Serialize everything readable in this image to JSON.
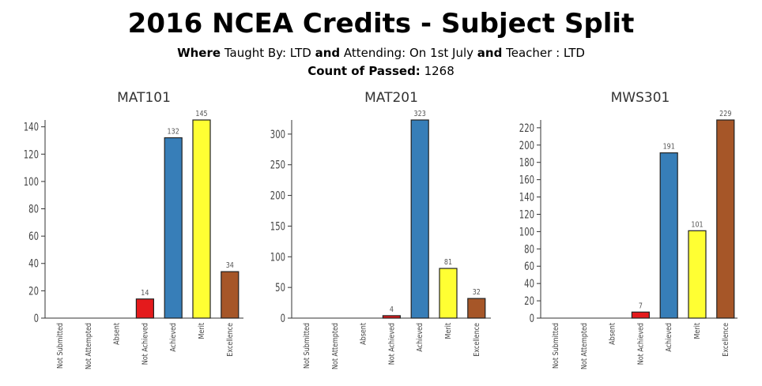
{
  "header": {
    "title": "2016 NCEA Credits - Subject Split",
    "filter": {
      "where_label": "Where",
      "taught_by": "Taught By: LTD",
      "and1": "and",
      "attending": "Attending: On 1st July",
      "and2": "and",
      "teacher": "Teacher : LTD"
    },
    "count_label": "Count of Passed:",
    "count_value": "1268"
  },
  "chart_data": [
    {
      "type": "bar",
      "title": "MAT101",
      "categories": [
        "Not Submitted",
        "Not Attempted",
        "Absent",
        "Not Achieved",
        "Achieved",
        "Merit",
        "Excellence"
      ],
      "values": [
        0,
        0,
        0,
        14,
        132,
        145,
        34
      ],
      "ylim": [
        0,
        145
      ],
      "yticks": [
        0,
        20,
        40,
        60,
        80,
        100,
        120,
        140
      ],
      "xlabel": "",
      "ylabel": ""
    },
    {
      "type": "bar",
      "title": "MAT201",
      "categories": [
        "Not Submitted",
        "Not Attempted",
        "Absent",
        "Not Achieved",
        "Achieved",
        "Merit",
        "Excellence"
      ],
      "values": [
        0,
        0,
        0,
        4,
        323,
        81,
        32
      ],
      "ylim": [
        0,
        323
      ],
      "yticks": [
        0,
        50,
        100,
        150,
        200,
        250,
        300
      ],
      "xlabel": "",
      "ylabel": ""
    },
    {
      "type": "bar",
      "title": "MWS301",
      "categories": [
        "Not Submitted",
        "Not Attempted",
        "Absent",
        "Not Achieved",
        "Achieved",
        "Merit",
        "Excellence"
      ],
      "values": [
        0,
        0,
        0,
        7,
        191,
        101,
        229
      ],
      "ylim": [
        0,
        229
      ],
      "yticks": [
        0,
        20,
        40,
        60,
        80,
        100,
        120,
        140,
        160,
        180,
        200,
        220
      ],
      "xlabel": "",
      "ylabel": ""
    }
  ],
  "colors": {
    "Not Submitted": "#cccccc",
    "Not Attempted": "#cccccc",
    "Absent": "#cccccc",
    "Not Achieved": "#e41a1c",
    "Achieved": "#377eb8",
    "Merit": "#ffff33",
    "Excellence": "#a65628"
  }
}
